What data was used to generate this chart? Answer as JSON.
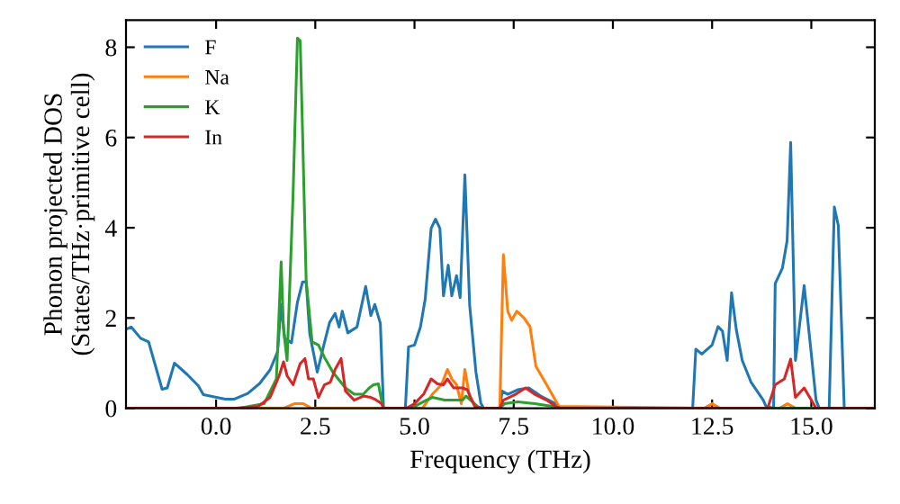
{
  "chart_data": {
    "type": "line",
    "xlabel": "Frequency (THz)",
    "ylabel": "Phonon projected DOS\n(States/THz·primitive cell)",
    "xlim": [
      -2.27,
      16.6
    ],
    "ylim": [
      0,
      8.6
    ],
    "xticks": [
      {
        "value": 0,
        "label": "0.0"
      },
      {
        "value": 2.5,
        "label": "2.5"
      },
      {
        "value": 5,
        "label": "5.0"
      },
      {
        "value": 7.5,
        "label": "7.5"
      },
      {
        "value": 10,
        "label": "10.0"
      },
      {
        "value": 12.5,
        "label": "12.5"
      },
      {
        "value": 15,
        "label": "15.0"
      }
    ],
    "yticks": [
      0,
      2,
      4,
      6,
      8
    ],
    "grid": false,
    "legend": "top left",
    "marker": "none",
    "line_style": "solid",
    "series": [
      {
        "name": "F",
        "color": "#1f77b4",
        "x": [
          -2.27,
          -2.14,
          -1.9,
          -1.7,
          -1.36,
          -1.23,
          -1.05,
          -0.73,
          -0.45,
          -0.32,
          0.23,
          0.45,
          0.8,
          1.1,
          1.36,
          1.55,
          1.64,
          1.73,
          1.9,
          2.05,
          2.18,
          2.27,
          2.36,
          2.55,
          2.73,
          2.86,
          3.0,
          3.1,
          3.18,
          3.32,
          3.55,
          3.77,
          3.9,
          4.0,
          4.14,
          4.22,
          4.77,
          4.85,
          5.0,
          5.15,
          5.27,
          5.42,
          5.53,
          5.64,
          5.73,
          5.85,
          5.94,
          6.06,
          6.15,
          6.27,
          6.39,
          6.55,
          6.67,
          6.74,
          7.15,
          7.21,
          7.35,
          7.6,
          7.88,
          8.18,
          8.56,
          8.64,
          12.01,
          12.09,
          12.24,
          12.5,
          12.65,
          12.76,
          12.88,
          12.99,
          13.11,
          13.26,
          13.48,
          13.79,
          13.86,
          14.05,
          14.09,
          14.27,
          14.39,
          14.48,
          14.6,
          14.82,
          15.0,
          15.12,
          15.2,
          15.45,
          15.58,
          15.68,
          15.83,
          16.6
        ],
        "values": [
          1.75,
          1.8,
          1.55,
          1.47,
          0.42,
          0.45,
          1.0,
          0.75,
          0.5,
          0.3,
          0.2,
          0.2,
          0.33,
          0.55,
          0.85,
          1.25,
          2.3,
          1.55,
          1.45,
          2.35,
          2.8,
          2.8,
          1.65,
          0.8,
          1.45,
          1.9,
          2.1,
          1.8,
          2.15,
          1.67,
          1.8,
          2.7,
          2.05,
          2.3,
          1.88,
          0,
          0,
          1.36,
          1.4,
          1.8,
          2.42,
          3.99,
          4.19,
          3.99,
          2.49,
          3.17,
          2.49,
          2.94,
          2.45,
          5.17,
          2.29,
          0.79,
          0.12,
          0,
          0,
          0.38,
          0.31,
          0.41,
          0.45,
          0.27,
          0.1,
          0,
          0,
          1.31,
          1.2,
          1.4,
          1.81,
          1.71,
          1.06,
          2.56,
          1.74,
          1.06,
          0.58,
          0.18,
          0.04,
          0,
          2.76,
          3.1,
          3.71,
          5.89,
          1.06,
          2.72,
          1.2,
          0.18,
          0,
          0,
          4.46,
          4.05,
          0,
          0
        ]
      },
      {
        "name": "Na",
        "color": "#ff7f0e",
        "x": [
          -2.27,
          1.7,
          1.97,
          2.2,
          2.4,
          5.2,
          5.45,
          5.68,
          5.83,
          5.94,
          6.06,
          6.18,
          6.27,
          6.39,
          6.55,
          6.7,
          7.15,
          7.24,
          7.35,
          7.45,
          7.58,
          7.76,
          7.91,
          8.06,
          8.33,
          8.64,
          12.3,
          12.5,
          12.7,
          14.2,
          14.4,
          14.6,
          16.6
        ],
        "values": [
          0,
          0,
          0.1,
          0.1,
          0,
          0,
          0.31,
          0.52,
          0.86,
          0.65,
          0.52,
          0.1,
          0.86,
          0.24,
          0.04,
          0,
          0,
          3.4,
          2.15,
          1.95,
          2.15,
          2.0,
          1.81,
          0.93,
          0.52,
          0.04,
          0,
          0.1,
          0,
          0,
          0.1,
          0,
          0
        ]
      },
      {
        "name": "K",
        "color": "#2ca02c",
        "x": [
          -2.27,
          0.6,
          1.21,
          1.52,
          1.64,
          1.7,
          1.79,
          1.94,
          2.05,
          2.12,
          2.18,
          2.27,
          2.42,
          2.58,
          2.73,
          2.95,
          3.26,
          3.48,
          3.71,
          3.86,
          3.97,
          4.09,
          4.21,
          4.8,
          5.0,
          5.3,
          5.45,
          5.76,
          6.21,
          6.3,
          6.59,
          6.7,
          7.15,
          7.27,
          7.6,
          8.03,
          8.48,
          8.6,
          16.6
        ],
        "values": [
          0,
          0,
          0.1,
          0.65,
          3.24,
          1.74,
          1.06,
          4.73,
          8.2,
          8.14,
          6.1,
          2.83,
          1.47,
          1.4,
          1.13,
          0.79,
          0.45,
          0.31,
          0.31,
          0.45,
          0.52,
          0.54,
          0,
          0,
          0.04,
          0.18,
          0.24,
          0.18,
          0.18,
          0.27,
          0.04,
          0,
          0,
          0.1,
          0.14,
          0.1,
          0.04,
          0,
          0
        ]
      },
      {
        "name": "In",
        "color": "#d62728",
        "x": [
          -2.27,
          0.5,
          1.06,
          1.36,
          1.59,
          1.7,
          1.79,
          1.94,
          2.12,
          2.24,
          2.33,
          2.45,
          2.58,
          2.73,
          2.88,
          3.0,
          3.15,
          3.26,
          3.48,
          3.71,
          3.9,
          4.0,
          4.17,
          4.23,
          4.8,
          5.0,
          5.23,
          5.42,
          5.58,
          5.73,
          5.83,
          5.99,
          6.21,
          6.33,
          6.52,
          6.7,
          7.15,
          7.24,
          7.55,
          7.8,
          8.03,
          8.33,
          8.56,
          8.7,
          13.9,
          14.09,
          14.32,
          14.48,
          14.6,
          14.82,
          15.0,
          15.12,
          16.6
        ],
        "values": [
          0,
          0,
          0.04,
          0.24,
          0.72,
          1.03,
          0.72,
          0.52,
          0.99,
          1.1,
          0.65,
          0.65,
          0.24,
          0.52,
          0.58,
          0.86,
          1.1,
          0.38,
          0.18,
          0.27,
          0.24,
          0.2,
          0.1,
          0,
          0,
          0.1,
          0.31,
          0.65,
          0.54,
          0.52,
          0.65,
          0.45,
          0.45,
          0.41,
          0.04,
          0,
          0,
          0.18,
          0.31,
          0.45,
          0.31,
          0.18,
          0.04,
          0,
          0,
          0.52,
          0.65,
          1.09,
          0.24,
          0.45,
          0.18,
          0,
          0
        ]
      }
    ]
  }
}
